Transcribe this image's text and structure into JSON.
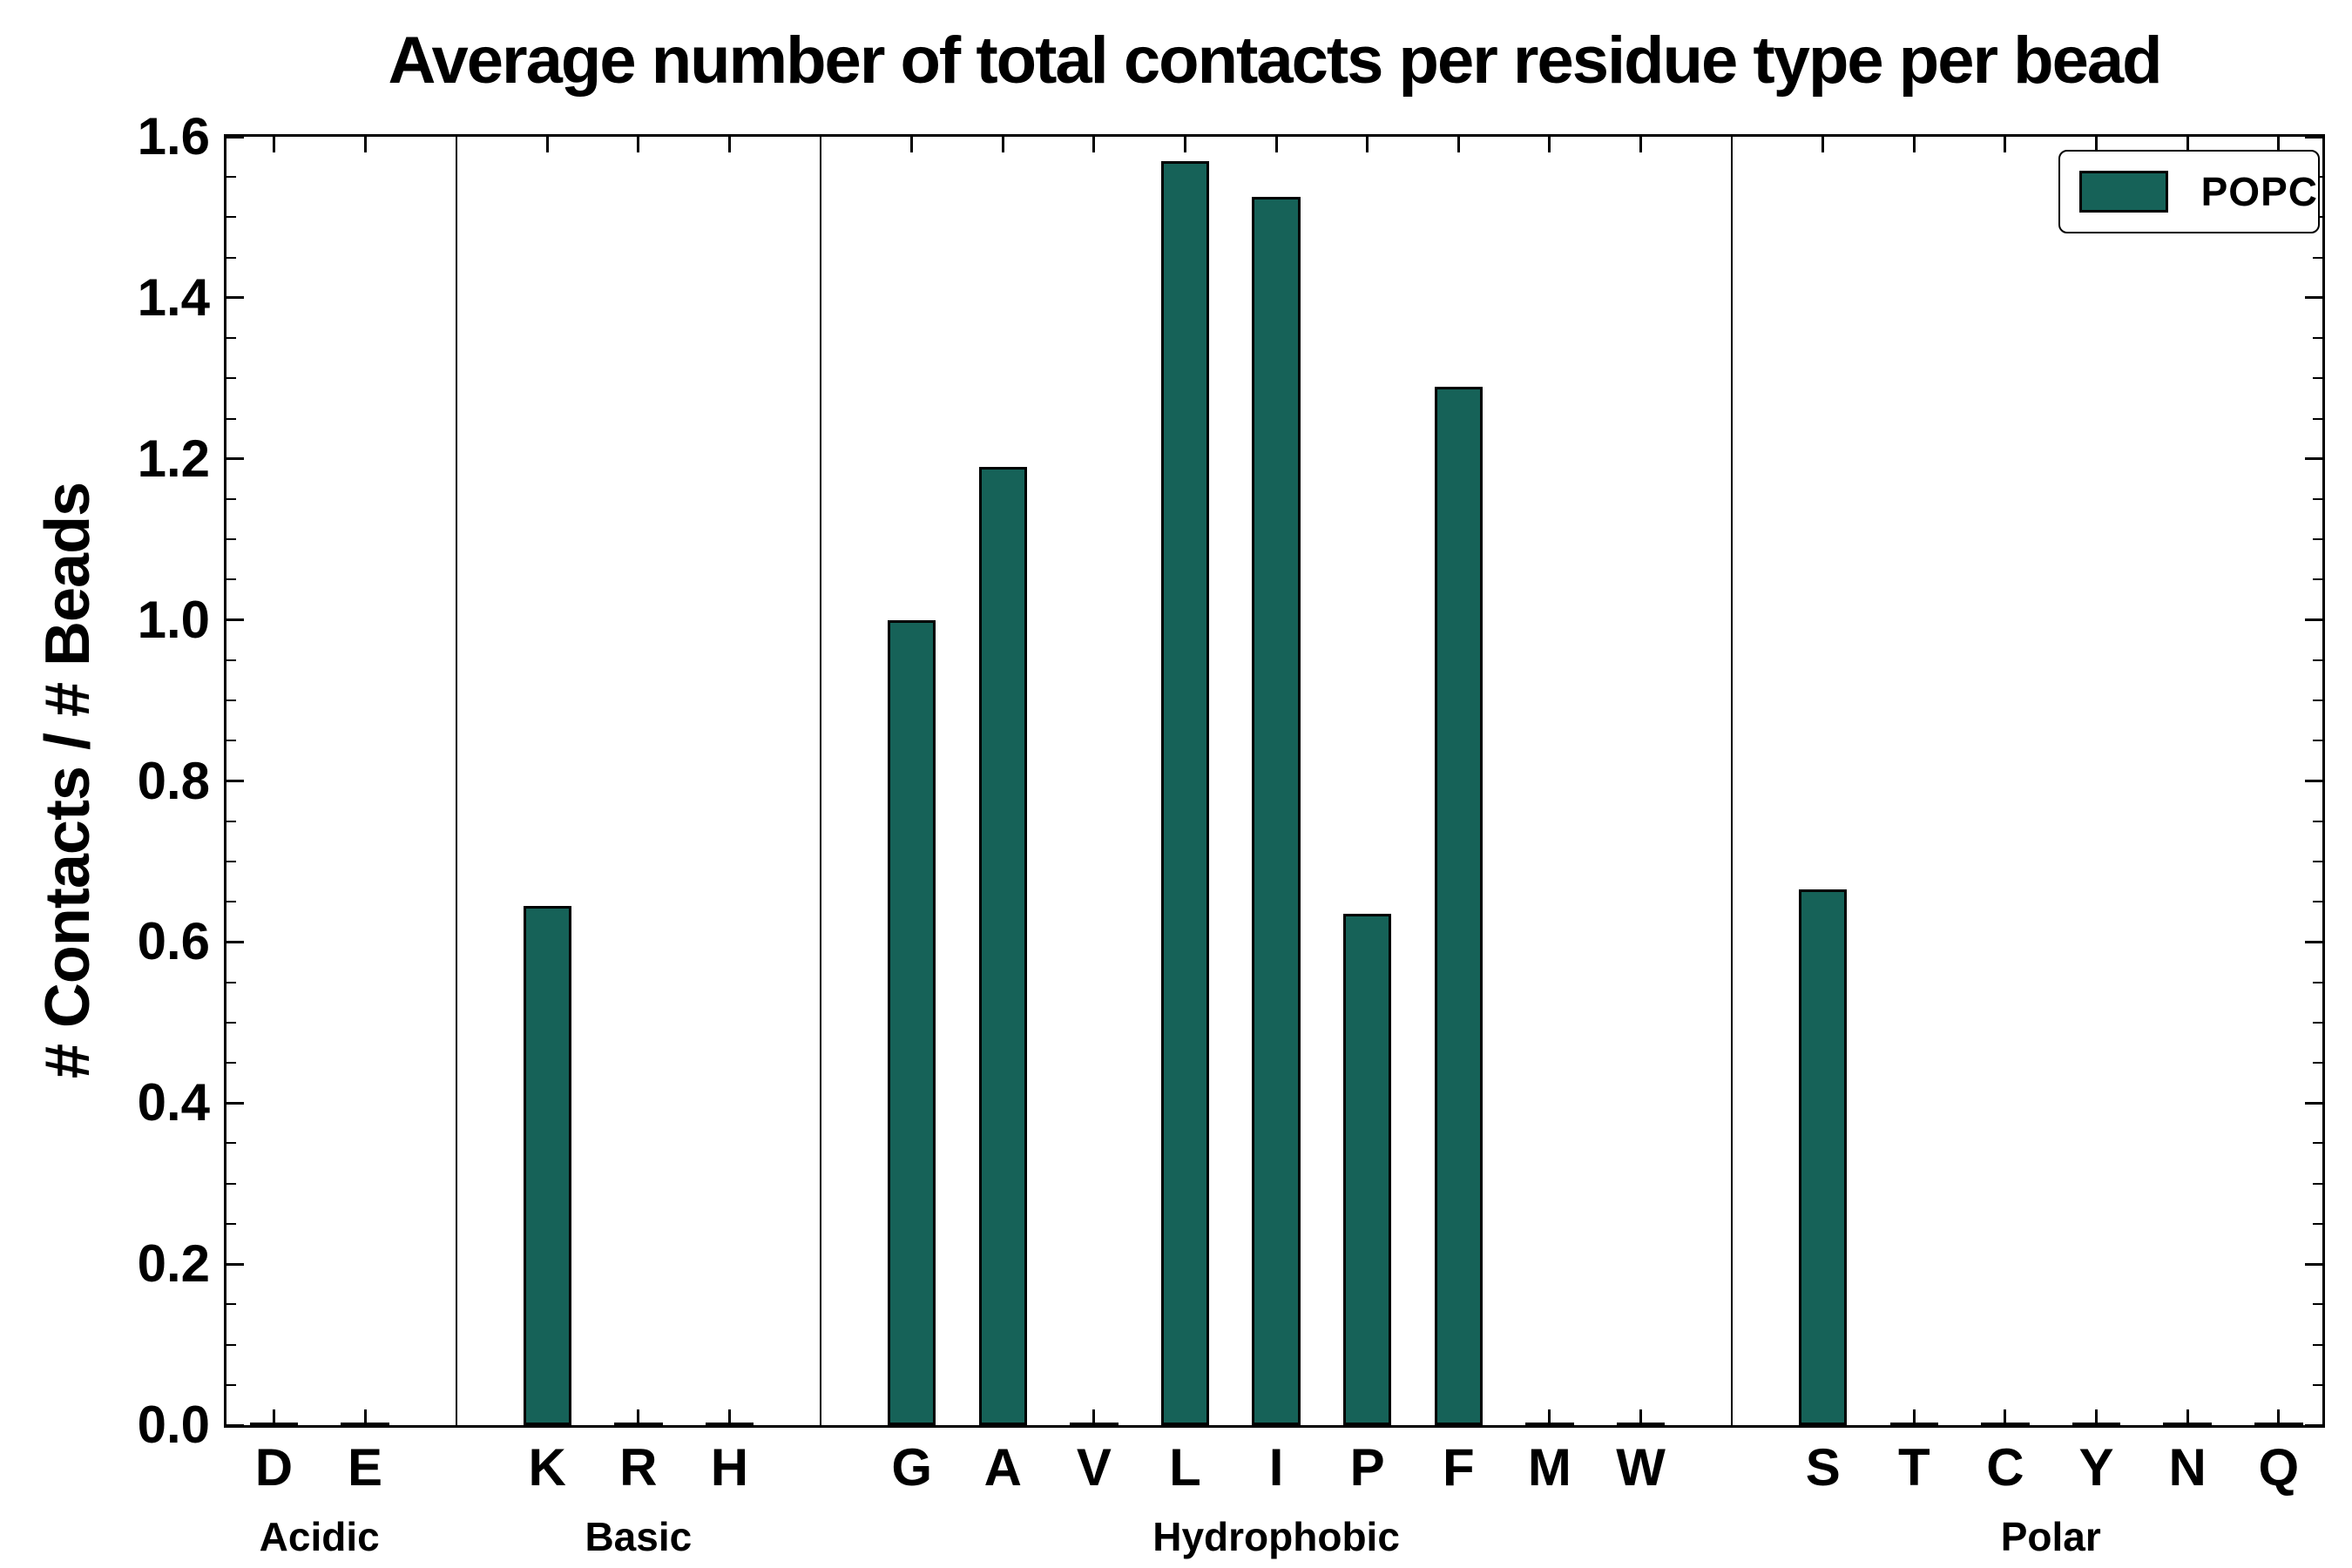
{
  "chart_data": {
    "type": "bar",
    "title": "Average number of total contacts per residue type per bead",
    "xlabel": "",
    "ylabel": "# Contacts / # Beads",
    "ylim": [
      0.0,
      1.6
    ],
    "ytick_step": 0.2,
    "ytick_labels": [
      "0.0",
      "0.2",
      "0.4",
      "0.6",
      "0.8",
      "1.0",
      "1.2",
      "1.4",
      "1.6"
    ],
    "grid": false,
    "bar_color": "#166258",
    "bar_edge_color": "#000000",
    "legend": {
      "position": "upper right",
      "entries": [
        {
          "label": "POPC",
          "color": "#166258"
        }
      ]
    },
    "groups": [
      {
        "label": "Acidic",
        "categories": [
          "D",
          "E"
        ],
        "values": [
          0.0,
          0.0
        ]
      },
      {
        "label": "Basic",
        "categories": [
          "K",
          "R",
          "H"
        ],
        "values": [
          0.645,
          0.0,
          0.0
        ]
      },
      {
        "label": "Hydrophobic",
        "categories": [
          "G",
          "A",
          "V",
          "L",
          "I",
          "P",
          "F",
          "M",
          "W"
        ],
        "values": [
          1.0,
          1.19,
          0.0,
          1.57,
          1.525,
          0.635,
          1.29,
          0.0,
          0.0
        ]
      },
      {
        "label": "Polar",
        "categories": [
          "S",
          "T",
          "C",
          "Y",
          "N",
          "Q"
        ],
        "values": [
          0.665,
          0.0,
          0.0,
          0.0,
          0.0,
          0.0
        ]
      }
    ],
    "series": [
      {
        "name": "POPC",
        "color": "#166258"
      }
    ]
  }
}
